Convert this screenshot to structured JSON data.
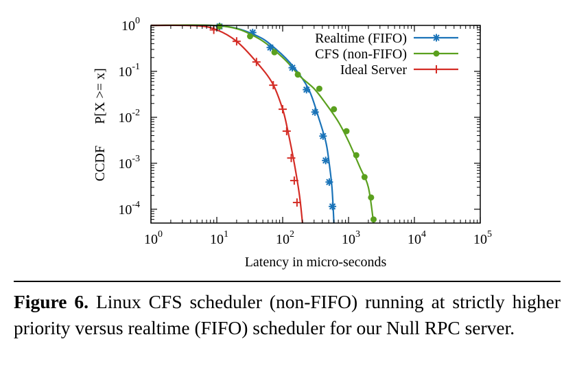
{
  "chart_data": {
    "type": "line",
    "xlabel": "Latency in micro-seconds",
    "ylabel": [
      "CCDF",
      "P[X >= x]"
    ],
    "x_scale": "log",
    "y_scale": "log",
    "xlim": [
      1,
      100000
    ],
    "ylim": [
      5e-05,
      1
    ],
    "x_ticks": [
      {
        "base": "10",
        "exp": "0"
      },
      {
        "base": "10",
        "exp": "1"
      },
      {
        "base": "10",
        "exp": "2"
      },
      {
        "base": "10",
        "exp": "3"
      },
      {
        "base": "10",
        "exp": "4"
      },
      {
        "base": "10",
        "exp": "5"
      }
    ],
    "y_ticks": [
      {
        "base": "10",
        "exp": "0"
      },
      {
        "base": "10",
        "exp": "-1"
      },
      {
        "base": "10",
        "exp": "-2"
      },
      {
        "base": "10",
        "exp": "-3"
      },
      {
        "base": "10",
        "exp": "-4"
      }
    ],
    "grid": false,
    "legend_position": "top-right",
    "series": [
      {
        "name": "Realtime (FIFO)",
        "color": "#1a73b8",
        "marker": "asterisk",
        "curve": [
          [
            1,
            1
          ],
          [
            12,
            0.97
          ],
          [
            40,
            0.6
          ],
          [
            80,
            0.3
          ],
          [
            150,
            0.12
          ],
          [
            250,
            0.04
          ],
          [
            350,
            0.01
          ],
          [
            450,
            0.003
          ],
          [
            500,
            0.0012
          ],
          [
            560,
            0.0003
          ],
          [
            600,
            5e-05
          ]
        ],
        "points": [
          [
            11,
            0.95
          ],
          [
            35,
            0.7
          ],
          [
            65,
            0.33
          ],
          [
            140,
            0.12
          ],
          [
            230,
            0.04
          ],
          [
            310,
            0.013
          ],
          [
            410,
            0.0039
          ],
          [
            450,
            0.00115
          ],
          [
            510,
            0.00039
          ],
          [
            570,
            0.000115
          ]
        ]
      },
      {
        "name": "CFS (non-FIFO)",
        "color": "#5aa01e",
        "marker": "circle",
        "curve": [
          [
            1,
            1
          ],
          [
            12,
            0.97
          ],
          [
            40,
            0.55
          ],
          [
            100,
            0.2
          ],
          [
            180,
            0.08
          ],
          [
            300,
            0.042
          ],
          [
            450,
            0.02
          ],
          [
            700,
            0.008
          ],
          [
            1000,
            0.003
          ],
          [
            1500,
            0.0008
          ],
          [
            2000,
            0.0003
          ],
          [
            2400,
            5e-05
          ]
        ],
        "points": [
          [
            11,
            0.95
          ],
          [
            32,
            0.58
          ],
          [
            75,
            0.26
          ],
          [
            170,
            0.085
          ],
          [
            360,
            0.042
          ],
          [
            600,
            0.015
          ],
          [
            930,
            0.005
          ],
          [
            1310,
            0.0015
          ],
          [
            1750,
            0.0005
          ],
          [
            2200,
            0.00018
          ],
          [
            2400,
            6e-05
          ]
        ]
      },
      {
        "name": "Ideal Server",
        "color": "#d42c25",
        "marker": "plus",
        "curve": [
          [
            1,
            1
          ],
          [
            5,
            0.98
          ],
          [
            10,
            0.8
          ],
          [
            20,
            0.45
          ],
          [
            40,
            0.16
          ],
          [
            70,
            0.055
          ],
          [
            100,
            0.015
          ],
          [
            120,
            0.005
          ],
          [
            150,
            0.001
          ],
          [
            180,
            0.0002
          ],
          [
            200,
            5e-05
          ]
        ],
        "points": [
          [
            9,
            0.8
          ],
          [
            20,
            0.45
          ],
          [
            40,
            0.16
          ],
          [
            72,
            0.05
          ],
          [
            100,
            0.015
          ],
          [
            115,
            0.005
          ],
          [
            135,
            0.0013
          ],
          [
            150,
            0.00042
          ],
          [
            165,
            0.00014
          ]
        ]
      }
    ]
  },
  "caption": {
    "label": "Figure 6.",
    "text": " Linux CFS scheduler (non-FIFO) running at strictly higher priority versus realtime (FIFO) scheduler for our Null RPC server."
  }
}
